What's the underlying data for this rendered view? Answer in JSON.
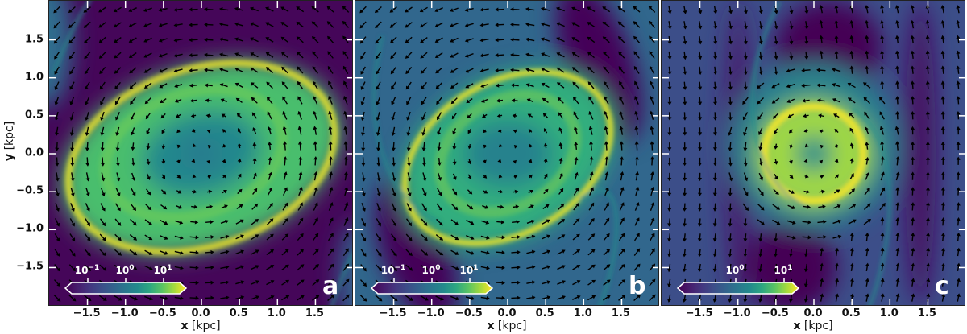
{
  "chart_data": [
    {
      "type": "heatmap",
      "panel": "a",
      "title": "",
      "xlabel": "x [kpc]",
      "ylabel": "y [kpc]",
      "xlim": [
        -2.0,
        2.0
      ],
      "ylim": [
        -2.0,
        2.0
      ],
      "xticks": [
        "-1.5",
        "-1.0",
        "-0.5",
        "0.0",
        "0.5",
        "1.0",
        "1.5"
      ],
      "yticks": [
        "1.5",
        "1.0",
        "0.5",
        "0.0",
        "-0.5",
        "-1.0",
        "-1.5"
      ],
      "colorbar": {
        "scale": "log",
        "colormap": "viridis",
        "ticks": [
          "10^-1",
          "10^0",
          "10^1"
        ],
        "extend": "both"
      },
      "overlay": "quiver velocity field (counter-clockwise rotation about origin)",
      "features": "elliptical high-density ring with semi-axes ~1.9 x 1.15 kpc, tilted ~-20 deg; thin shock filaments near edges"
    },
    {
      "type": "heatmap",
      "panel": "b",
      "xlabel": "x [kpc]",
      "xlim": [
        -2.0,
        2.0
      ],
      "ylim": [
        -2.0,
        2.0
      ],
      "xticks": [
        "-1.5",
        "-1.0",
        "-0.5",
        "0.0",
        "0.5",
        "1.0",
        "1.5"
      ],
      "colorbar": {
        "scale": "log",
        "colormap": "viridis",
        "ticks": [
          "10^-1",
          "10^0",
          "10^1"
        ],
        "extend": "both"
      },
      "overlay": "quiver velocity field (counter-clockwise rotation about origin)",
      "features": "smaller elliptical ring ~1.5 x 1.0 kpc with spiral shock arm from (-1.6, 1.5) to (1.3, -2.0)"
    },
    {
      "type": "heatmap",
      "panel": "c",
      "xlabel": "x [kpc]",
      "xlim": [
        -2.0,
        2.0
      ],
      "ylim": [
        -2.0,
        2.0
      ],
      "xticks": [
        "-1.5",
        "-1.0",
        "-0.5",
        "0.0",
        "0.5",
        "1.0",
        "1.5"
      ],
      "colorbar": {
        "scale": "log",
        "colormap": "viridis",
        "ticks": [
          "10^0",
          "10^1"
        ],
        "extend": "both"
      },
      "overlay": "quiver velocity field (counter-clockwise rotation about origin)",
      "features": "compact circular ring radius ~0.7 kpc with spiral arm; low-density vertical bands at x ~ -1.0 and x ~ 1.4"
    }
  ],
  "axes": {
    "ylabel_bold": "y",
    "ylabel_rest": " [kpc]",
    "xlabel_bold": "x",
    "xlabel_rest": " [kpc]",
    "yticks": [
      "1.5",
      "1.0",
      "0.5",
      "0.0",
      "−0.5",
      "−1.0",
      "−1.5"
    ],
    "xticks": [
      "−1.5",
      "−1.0",
      "−0.5",
      "0.0",
      "0.5",
      "1.0",
      "1.5"
    ]
  },
  "panels": [
    {
      "letter": "a",
      "cbar_ticks": [
        {
          "base": "10",
          "exp": "−1"
        },
        {
          "base": "10",
          "exp": "0"
        },
        {
          "base": "10",
          "exp": "1"
        }
      ]
    },
    {
      "letter": "b",
      "cbar_ticks": [
        {
          "base": "10",
          "exp": "−1"
        },
        {
          "base": "10",
          "exp": "0"
        },
        {
          "base": "10",
          "exp": "1"
        }
      ]
    },
    {
      "letter": "c",
      "cbar_ticks": [
        {
          "base": "10",
          "exp": "0"
        },
        {
          "base": "10",
          "exp": "1"
        }
      ]
    }
  ]
}
